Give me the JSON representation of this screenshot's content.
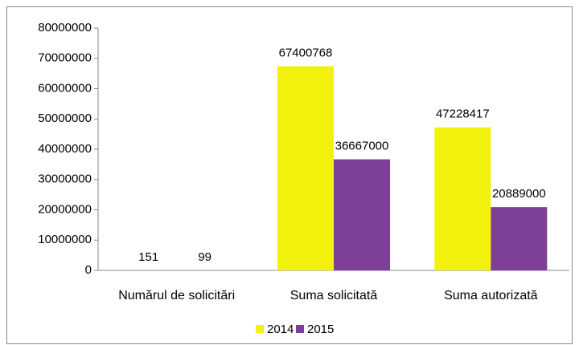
{
  "chart_data": {
    "type": "bar",
    "categories": [
      "Numărul de solicitări",
      "Suma solicitată",
      "Suma autorizată"
    ],
    "series": [
      {
        "name": "2014",
        "color": "#f2f20c",
        "values": [
          151,
          67400768,
          47228417
        ]
      },
      {
        "name": "2015",
        "color": "#7d3f98",
        "values": [
          99,
          36667000,
          20889000
        ]
      }
    ],
    "ylim": [
      0,
      80000000
    ],
    "yticks": [
      0,
      10000000,
      20000000,
      30000000,
      40000000,
      50000000,
      60000000,
      70000000,
      80000000
    ],
    "grid": false,
    "legend": "bottom",
    "data_labels": true
  }
}
